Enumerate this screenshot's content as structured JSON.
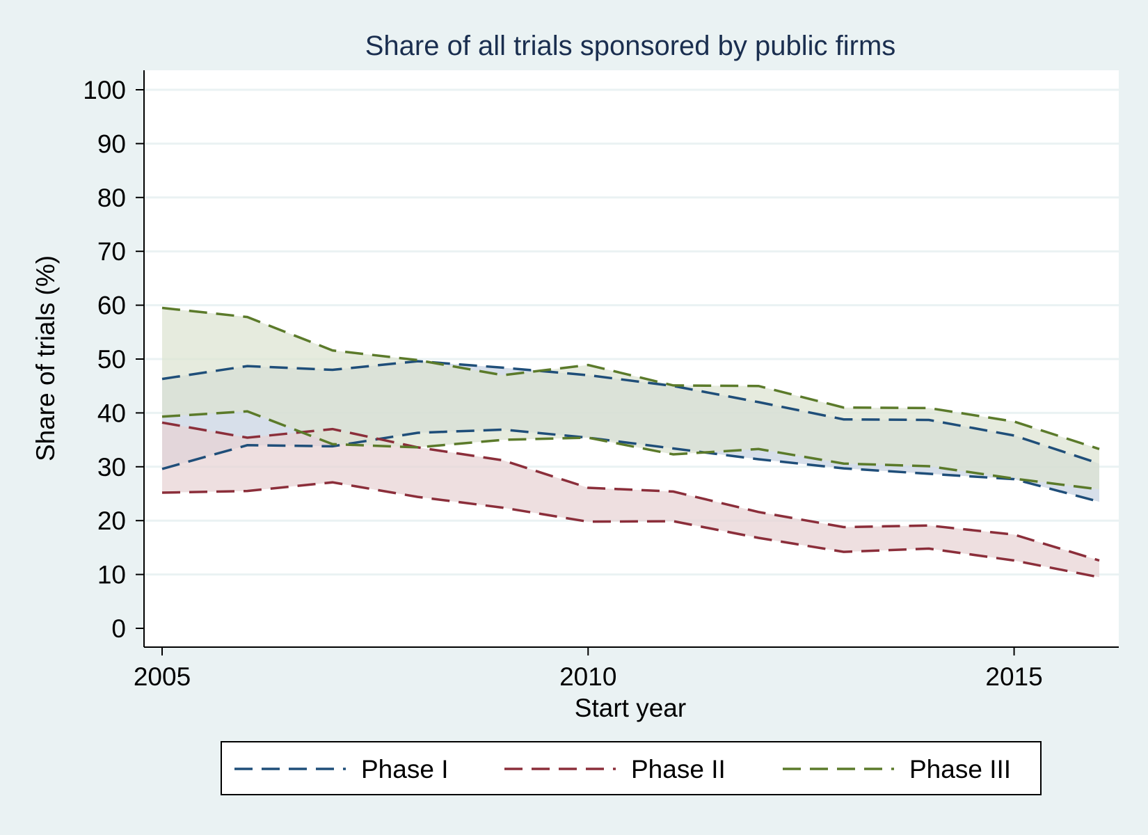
{
  "chart_data": {
    "type": "area",
    "title": "Share of all trials sponsored by public firms",
    "xlabel": "Start year",
    "ylabel": "Share of trials (%)",
    "xlim": [
      2005,
      2016
    ],
    "ylim": [
      0,
      100
    ],
    "x_ticks": [
      2005,
      2010,
      2015
    ],
    "y_ticks": [
      0,
      10,
      20,
      30,
      40,
      50,
      60,
      70,
      80,
      90,
      100
    ],
    "grid": true,
    "legend_position": "bottom",
    "x": [
      2005,
      2006,
      2007,
      2008,
      2009,
      2010,
      2011,
      2012,
      2013,
      2014,
      2015,
      2016
    ],
    "series": [
      {
        "name": "Phase I",
        "line_color": "#1f4e79",
        "fill_color": "#c8d3e2",
        "upper": [
          46.3,
          48.7,
          48.0,
          49.6,
          48.4,
          47.0,
          45.0,
          42.0,
          38.8,
          38.7,
          35.8,
          30.6
        ],
        "lower": [
          29.6,
          34.0,
          33.8,
          36.3,
          36.9,
          35.4,
          33.4,
          31.4,
          29.7,
          28.7,
          27.7,
          23.5
        ]
      },
      {
        "name": "Phase II",
        "line_color": "#8b2e3a",
        "fill_color": "#e8d3d4",
        "upper": [
          38.2,
          35.4,
          37.0,
          33.6,
          31.2,
          26.1,
          25.4,
          21.6,
          18.8,
          19.1,
          17.4,
          12.6
        ],
        "lower": [
          25.2,
          25.5,
          27.1,
          24.4,
          22.4,
          19.8,
          19.9,
          16.8,
          14.2,
          14.8,
          12.6,
          9.5
        ]
      },
      {
        "name": "Phase III",
        "line_color": "#5b7a2a",
        "fill_color": "#dce3d1",
        "upper": [
          59.5,
          57.8,
          51.6,
          49.8,
          47.0,
          48.9,
          45.1,
          45.0,
          41.0,
          40.9,
          38.4,
          33.3
        ],
        "lower": [
          39.3,
          40.3,
          34.2,
          33.6,
          35.0,
          35.4,
          32.3,
          33.3,
          30.6,
          30.1,
          27.8,
          25.8
        ]
      }
    ]
  }
}
